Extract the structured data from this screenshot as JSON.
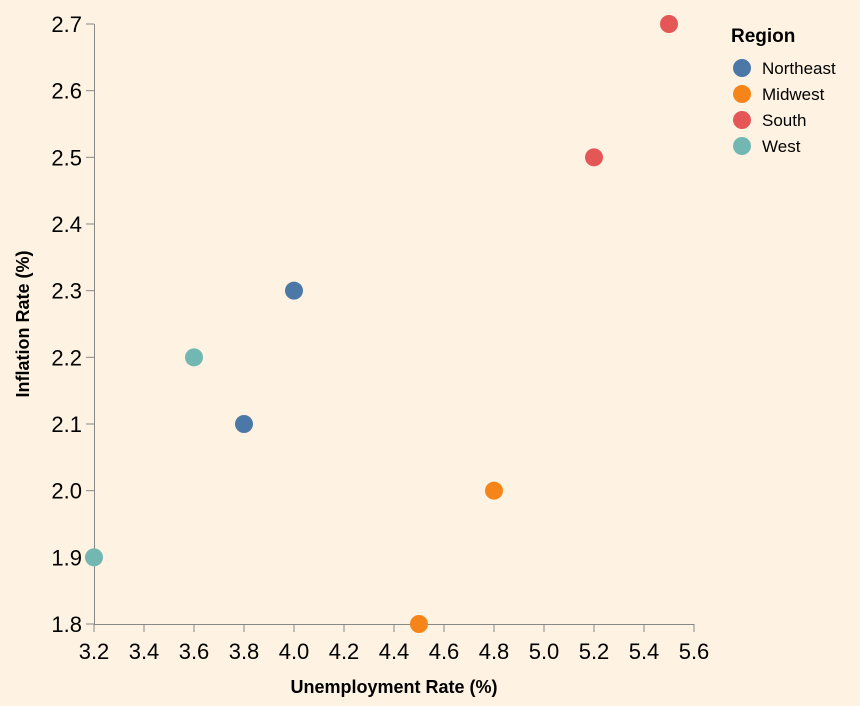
{
  "chart_data": {
    "type": "scatter",
    "xlabel": "Unemployment Rate (%)",
    "ylabel": "Inflation Rate (%)",
    "xlim": [
      3.2,
      5.6
    ],
    "ylim": [
      1.8,
      2.7
    ],
    "x_ticks": [
      "3.2",
      "3.4",
      "3.6",
      "3.8",
      "4.0",
      "4.2",
      "4.4",
      "4.6",
      "4.8",
      "5.0",
      "5.2",
      "5.4",
      "5.6"
    ],
    "y_ticks": [
      "1.8",
      "1.9",
      "2.0",
      "2.1",
      "2.2",
      "2.3",
      "2.4",
      "2.5",
      "2.6",
      "2.7"
    ],
    "grid": false,
    "legend": {
      "title": "Region",
      "placement": "top-right"
    },
    "series": [
      {
        "name": "Northeast",
        "color": "#4c78a8",
        "points": [
          {
            "x": 4.0,
            "y": 2.3
          },
          {
            "x": 3.8,
            "y": 2.1
          }
        ]
      },
      {
        "name": "Midwest",
        "color": "#f58518",
        "points": [
          {
            "x": 4.8,
            "y": 2.0
          },
          {
            "x": 4.5,
            "y": 1.8
          }
        ]
      },
      {
        "name": "South",
        "color": "#e45756",
        "points": [
          {
            "x": 5.5,
            "y": 2.7
          },
          {
            "x": 5.2,
            "y": 2.5
          }
        ]
      },
      {
        "name": "West",
        "color": "#72b7b2",
        "points": [
          {
            "x": 3.6,
            "y": 2.2
          },
          {
            "x": 3.2,
            "y": 1.9
          }
        ]
      }
    ]
  }
}
